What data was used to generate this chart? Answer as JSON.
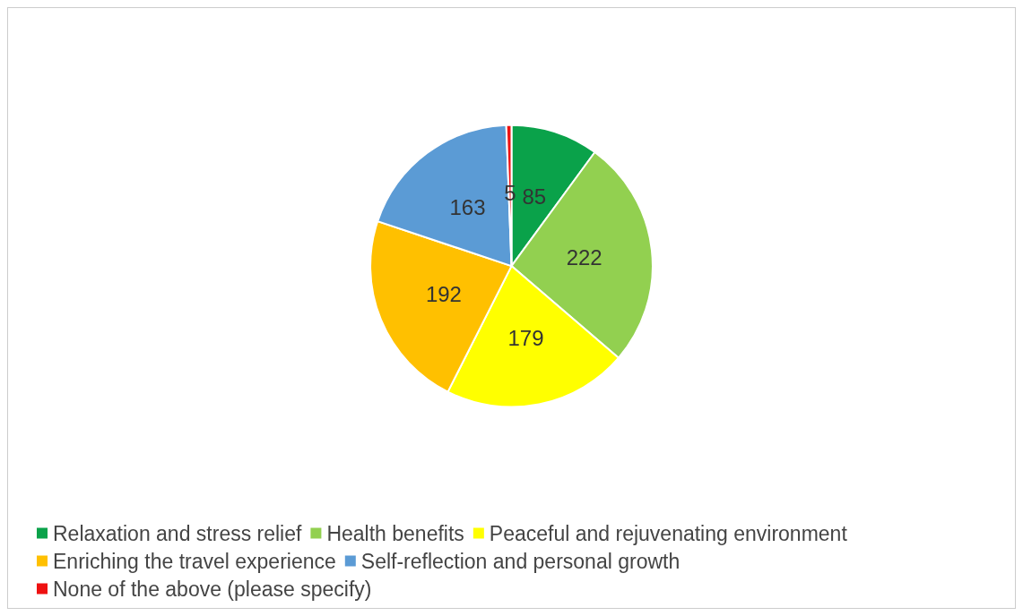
{
  "chart_data": {
    "type": "pie",
    "categories": [
      "Relaxation and stress relief",
      "Health benefits",
      "Peaceful and rejuvenating environment",
      "Enriching the travel experience",
      "Self-reflection and personal growth",
      "None of the above (please specify)"
    ],
    "values": [
      85,
      222,
      179,
      192,
      163,
      5
    ],
    "colors": [
      "#0aa24a",
      "#92d050",
      "#ffff00",
      "#ffc000",
      "#5b9bd5",
      "#ee1111"
    ],
    "data_labels": true,
    "legend": "bottom"
  }
}
